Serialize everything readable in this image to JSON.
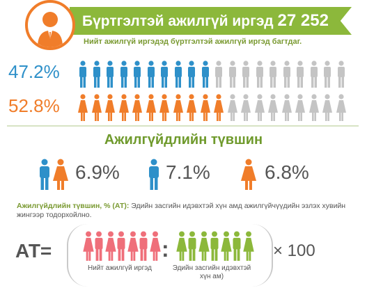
{
  "header": {
    "title": "Бүртгэлтэй ажилгүй иргэд",
    "total": "27 252",
    "subtitle": "Нийт ажилгүй иргэдэд бүртгэлтэй ажилгүй иргэд багтдаг."
  },
  "gender_share": {
    "male_pct": "47.2%",
    "female_pct": "52.8%",
    "male_fraction": 0.472,
    "female_fraction": 0.528,
    "icons_per_row": 20
  },
  "colors": {
    "male": "#2e90c9",
    "female": "#f07d2a",
    "inactive": "#c4c4c4",
    "green": "#8cb83b",
    "pink": "#ef6f7a"
  },
  "rate": {
    "section_title": "Ажилгүйдлийн түвшин",
    "total": "6.9%",
    "male": "7.1%",
    "female": "6.8%"
  },
  "definition": {
    "label": "Ажилгүйдлийн түвшин, % (АТ):",
    "text": " Эдийн засгийн идэвхтэй хүн амд ажилгүйчүүдийн эзлэх хувийн жингээр тодорхойлно."
  },
  "formula": {
    "lhs": "АТ=",
    "colon": ":",
    "multiplier": "× 100",
    "numerator_caption": "Нийт ажилгүй иргэд",
    "denominator_caption": "Эдийн засгийн идэвхтэй хүн ам)"
  }
}
